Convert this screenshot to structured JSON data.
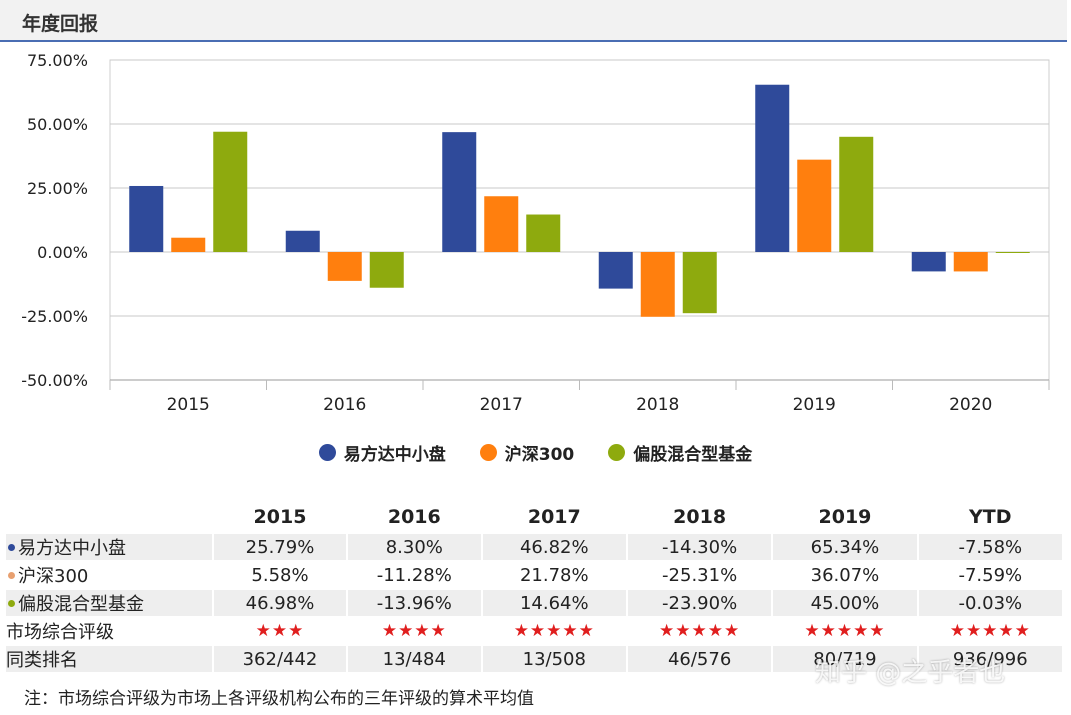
{
  "header": {
    "title": "年度回报"
  },
  "colors": {
    "s1": "#2f4a9a",
    "s2": "#ff7f0e",
    "s3": "#8eaa0e",
    "star": "#e01e1e"
  },
  "chart_data": {
    "type": "bar",
    "categories": [
      "2015",
      "2016",
      "2017",
      "2018",
      "2019",
      "2020"
    ],
    "series": [
      {
        "name": "易方达中小盘",
        "values": [
          25.79,
          8.3,
          46.82,
          -14.3,
          65.34,
          -7.58
        ]
      },
      {
        "name": "沪深300",
        "values": [
          5.58,
          -11.28,
          21.78,
          -25.31,
          36.07,
          -7.59
        ]
      },
      {
        "name": "偏股混合型基金",
        "values": [
          46.98,
          -13.96,
          14.64,
          -23.9,
          45.0,
          -0.03
        ]
      }
    ],
    "yticks": [
      "75.00%",
      "50.00%",
      "25.00%",
      "0.00%",
      "-25.00%",
      "-50.00%"
    ],
    "ylim": [
      -50,
      75
    ],
    "grid": true,
    "legend_position": "bottom"
  },
  "table": {
    "headers": [
      "2015",
      "2016",
      "2017",
      "2018",
      "2019",
      "YTD"
    ],
    "rows": [
      {
        "label": "易方达中小盘",
        "cells": [
          "25.79%",
          "8.30%",
          "46.82%",
          "-14.30%",
          "65.34%",
          "-7.58%"
        ]
      },
      {
        "label": "沪深300",
        "cells": [
          "5.58%",
          "-11.28%",
          "21.78%",
          "-25.31%",
          "36.07%",
          "-7.59%"
        ]
      },
      {
        "label": "偏股混合型基金",
        "cells": [
          "46.98%",
          "-13.96%",
          "14.64%",
          "-23.90%",
          "45.00%",
          "-0.03%"
        ]
      },
      {
        "label": "市场综合评级",
        "cells": [
          "★★★",
          "★★★★",
          "★★★★★",
          "★★★★★",
          "★★★★★",
          "★★★★★"
        ]
      },
      {
        "label": "同类排名",
        "cells": [
          "362/442",
          "13/484",
          "13/508",
          "46/576",
          "80/719",
          "936/996"
        ]
      }
    ]
  },
  "note": "注：市场综合评级为市场上各评级机构公布的三年评级的算术平均值",
  "watermark": "知乎 @之乎者也"
}
